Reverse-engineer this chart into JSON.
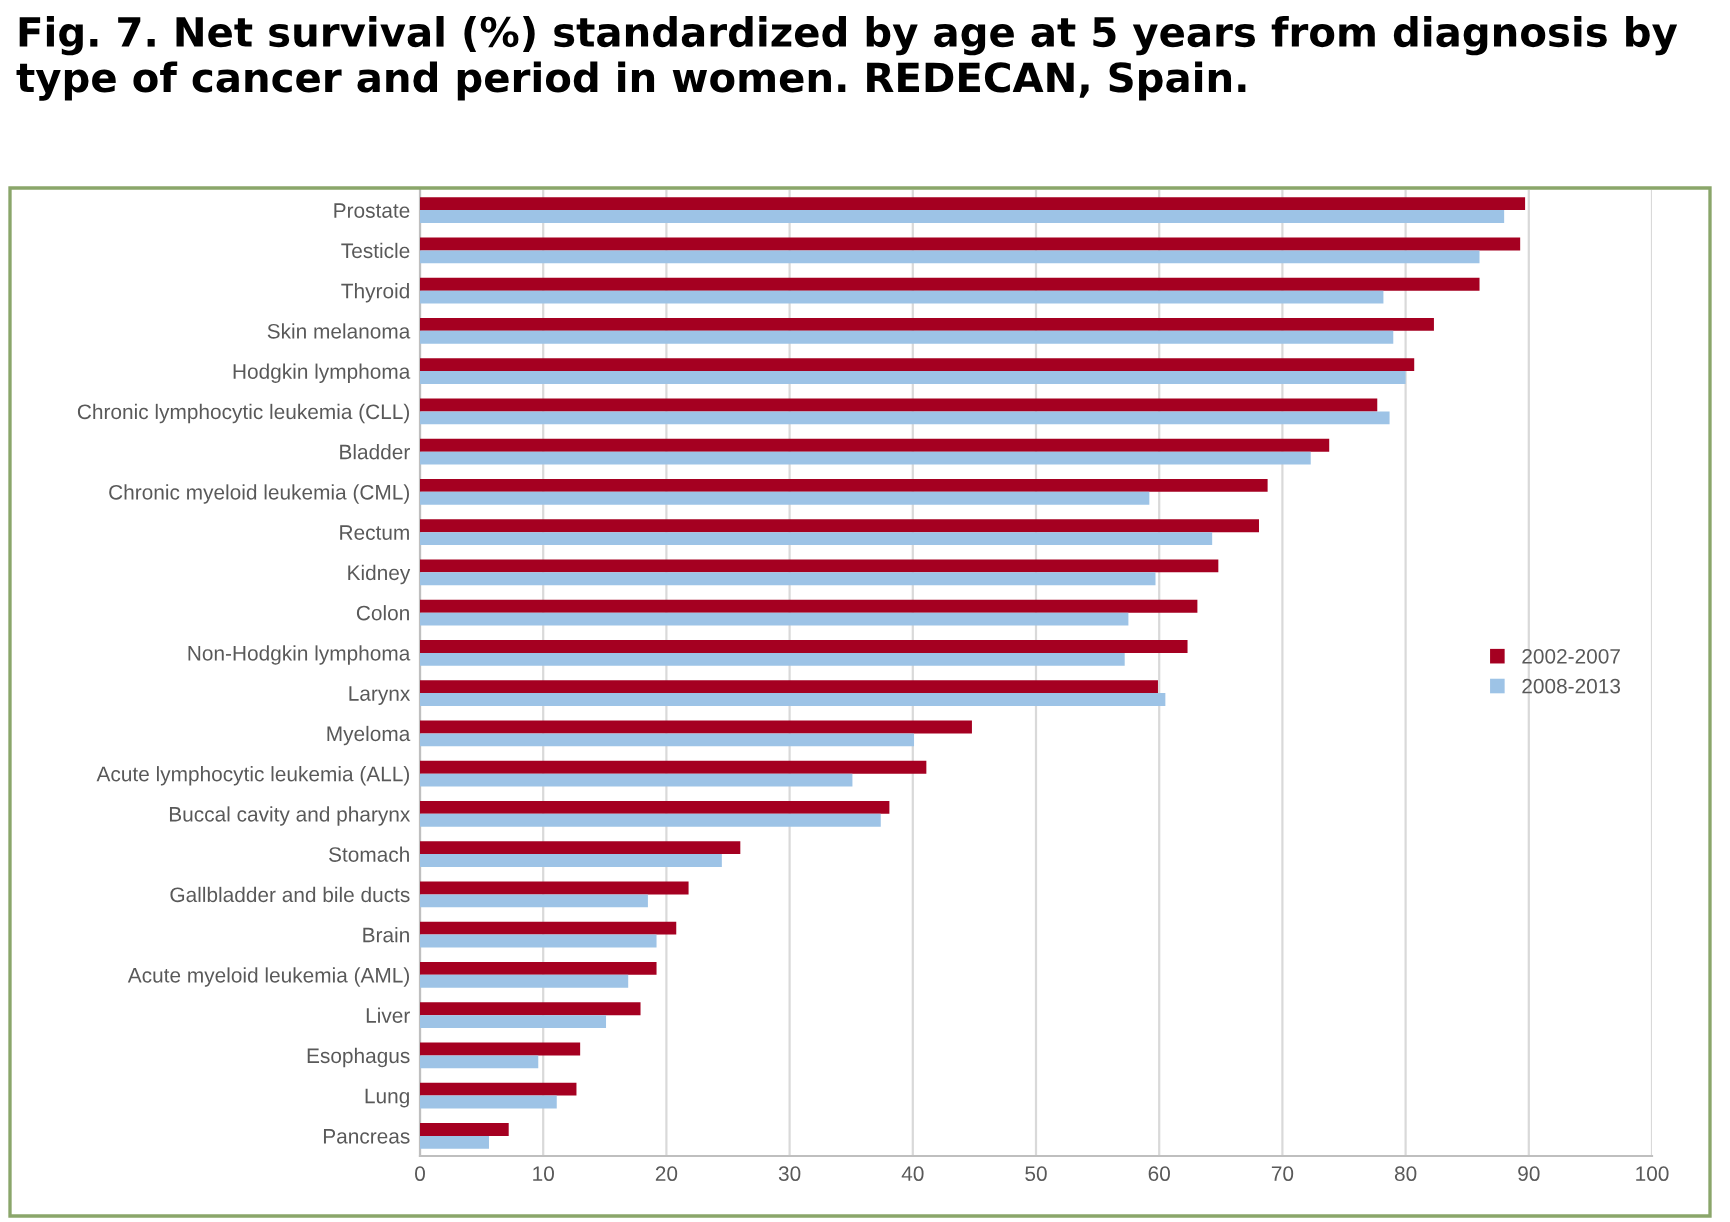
{
  "chart_data": {
    "type": "bar",
    "orientation": "horizontal",
    "title": "Fig. 7. Net survival (%) standardized by age at 5 years from diagnosis by type of cancer and period in women. REDECAN, Spain.",
    "categories": [
      "Prostate",
      "Testicle",
      "Thyroid",
      "Skin melanoma",
      "Hodgkin lymphoma",
      "Chronic lymphocytic leukemia (CLL)",
      "Bladder",
      "Chronic myeloid leukemia (CML)",
      "Rectum",
      "Kidney",
      "Colon",
      "Non-Hodgkin lymphoma",
      "Larynx",
      "Myeloma",
      "Acute lymphocytic leukemia (ALL)",
      "Buccal cavity and pharynx",
      "Stomach",
      "Gallbladder and bile ducts",
      "Brain",
      "Acute myeloid leukemia (AML)",
      "Liver",
      "Esophagus",
      "Lung",
      "Pancreas"
    ],
    "series": [
      {
        "name": "2002-2007",
        "color": "#a50021",
        "values": [
          89.7,
          89.3,
          86.0,
          82.3,
          80.7,
          77.7,
          73.8,
          68.8,
          68.1,
          64.8,
          63.1,
          62.3,
          59.9,
          44.8,
          41.1,
          38.1,
          26.0,
          21.8,
          20.8,
          19.2,
          17.9,
          13.0,
          12.7,
          7.2
        ]
      },
      {
        "name": "2008-2013",
        "color": "#9dc3e6",
        "values": [
          88.0,
          86.0,
          78.2,
          79.0,
          80.0,
          78.7,
          72.3,
          59.2,
          64.3,
          59.7,
          57.5,
          57.2,
          60.5,
          40.1,
          35.1,
          37.4,
          24.5,
          18.5,
          19.2,
          16.9,
          15.1,
          9.6,
          11.1,
          5.6
        ]
      }
    ],
    "xlim": [
      0,
      100
    ],
    "xticks": [
      0,
      10,
      20,
      30,
      40,
      50,
      60,
      70,
      80,
      90,
      100
    ],
    "grid": "x",
    "legend": "right"
  }
}
